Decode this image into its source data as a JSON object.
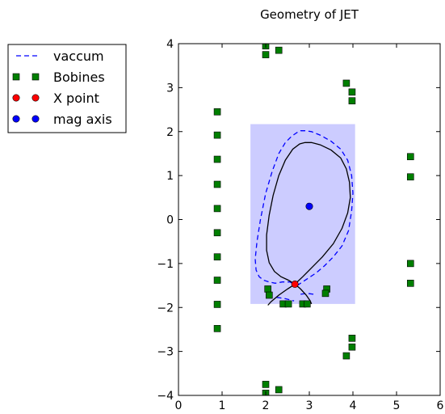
{
  "chart_data": {
    "type": "scatter",
    "title": "Geometry of JET",
    "xlabel": "",
    "ylabel": "",
    "xlim": [
      0,
      6
    ],
    "ylim": [
      -4,
      4
    ],
    "xticks": [
      "0",
      "1",
      "2",
      "3",
      "4",
      "5",
      "6"
    ],
    "yticks": [
      "4",
      "3",
      "2",
      "1",
      "0",
      "−1",
      "−2",
      "−3",
      "−4"
    ],
    "xtick_values": [
      0,
      1,
      2,
      3,
      4,
      5,
      6
    ],
    "ytick_values": [
      4,
      3,
      2,
      1,
      0,
      -1,
      -2,
      -3,
      -4
    ],
    "grid": false,
    "legend_position": "top-left outside",
    "shaded_region": {
      "x": [
        1.65,
        4.05
      ],
      "y": [
        -1.92,
        2.17
      ],
      "color": "#ccccff"
    },
    "series": [
      {
        "name": "vaccum",
        "kind": "line",
        "style": "dashed",
        "color": "#0000ff",
        "x": [
          2.55,
          2.72,
          2.95,
          3.15,
          3.35,
          3.55,
          3.75,
          3.9,
          3.97,
          4.0,
          3.97,
          3.88,
          3.72,
          3.5,
          3.25,
          3.05,
          2.9,
          2.8,
          2.72,
          2.6,
          2.45,
          2.3,
          2.15,
          2.0,
          1.88,
          1.8,
          1.76,
          1.78,
          1.85,
          1.95,
          2.08,
          2.22,
          2.38,
          2.55
        ],
        "y": [
          -1.42,
          -1.5,
          -1.35,
          -1.22,
          -1.05,
          -0.85,
          -0.6,
          -0.25,
          0.2,
          0.6,
          1.0,
          1.35,
          1.6,
          1.78,
          1.92,
          2.0,
          2.02,
          2.02,
          1.98,
          1.9,
          1.75,
          1.5,
          1.1,
          0.6,
          0.0,
          -0.5,
          -0.9,
          -1.15,
          -1.3,
          -1.38,
          -1.42,
          -1.45,
          -1.42,
          -1.42
        ]
      },
      {
        "name": "",
        "kind": "line",
        "style": "dashed",
        "color": "#0000ff",
        "x": [
          2.25,
          2.45,
          2.65
        ],
        "y": [
          -1.77,
          -1.8,
          -1.85
        ]
      },
      {
        "name": "",
        "kind": "line",
        "style": "dashed",
        "color": "#0000ff",
        "x": [
          2.8,
          2.95,
          3.1
        ],
        "y": [
          -1.7,
          -1.68,
          -1.7
        ]
      },
      {
        "name": "",
        "kind": "line",
        "style": "solid",
        "color": "#000000",
        "x": [
          2.67,
          2.85,
          3.05,
          3.3,
          3.55,
          3.75,
          3.88,
          3.94,
          3.92,
          3.85,
          3.72,
          3.5,
          3.25,
          3.05,
          2.9,
          2.78,
          2.62,
          2.45,
          2.3,
          2.17,
          2.08,
          2.02,
          2.02,
          2.08,
          2.2,
          2.35,
          2.52,
          2.67
        ],
        "y": [
          -1.47,
          -1.3,
          -1.1,
          -0.85,
          -0.55,
          -0.2,
          0.15,
          0.5,
          0.85,
          1.15,
          1.4,
          1.58,
          1.7,
          1.75,
          1.75,
          1.72,
          1.6,
          1.35,
          1.0,
          0.55,
          0.1,
          -0.35,
          -0.7,
          -0.98,
          -1.18,
          -1.3,
          -1.38,
          -1.47
        ]
      },
      {
        "name": "",
        "kind": "line",
        "style": "solid",
        "color": "#000000",
        "x": [
          2.67,
          2.5,
          2.3,
          2.12,
          2.05
        ],
        "y": [
          -1.47,
          -1.58,
          -1.72,
          -1.87,
          -1.95
        ]
      },
      {
        "name": "",
        "kind": "line",
        "style": "solid",
        "color": "#000000",
        "x": [
          2.67,
          2.8,
          2.93,
          3.02,
          3.05
        ],
        "y": [
          -1.47,
          -1.58,
          -1.72,
          -1.85,
          -1.92
        ]
      },
      {
        "name": "Bobines",
        "kind": "marker",
        "marker": "square",
        "color": "#007f00",
        "x": [
          0.89,
          0.89,
          0.89,
          0.89,
          0.89,
          0.89,
          0.89,
          0.89,
          0.89,
          0.89,
          2.0,
          2.0,
          2.3,
          2.05,
          2.08,
          2.4,
          2.52,
          2.85,
          2.95,
          3.4,
          3.37,
          3.85,
          3.98,
          3.98,
          5.32,
          5.32,
          5.32,
          5.32,
          3.98,
          3.98,
          3.85,
          2.0,
          2.0,
          2.3
        ],
        "y": [
          2.45,
          1.92,
          1.37,
          0.8,
          0.25,
          -0.3,
          -0.85,
          -1.38,
          -1.93,
          -2.48,
          3.95,
          3.75,
          3.85,
          -1.58,
          -1.72,
          -1.92,
          -1.92,
          -1.92,
          -1.92,
          -1.58,
          -1.68,
          3.1,
          2.9,
          2.7,
          1.43,
          0.97,
          -1.0,
          -1.45,
          -2.7,
          -2.9,
          -3.1,
          -3.75,
          -3.95,
          -3.87
        ]
      },
      {
        "name": "X point",
        "kind": "marker",
        "marker": "circle",
        "color": "#ff0000",
        "x": [
          2.67
        ],
        "y": [
          -1.47
        ]
      },
      {
        "name": "mag axis",
        "kind": "marker",
        "marker": "circle",
        "color": "#0000ff",
        "x": [
          3.0
        ],
        "y": [
          0.3
        ]
      }
    ],
    "legend": [
      {
        "label": "vaccum",
        "kind": "line",
        "color": "#0000ff"
      },
      {
        "label": "Bobines",
        "kind": "square",
        "color": "#007f00"
      },
      {
        "label": "X point",
        "kind": "circle",
        "color": "#ff0000"
      },
      {
        "label": "mag axis",
        "kind": "circle",
        "color": "#0000ff"
      }
    ]
  }
}
